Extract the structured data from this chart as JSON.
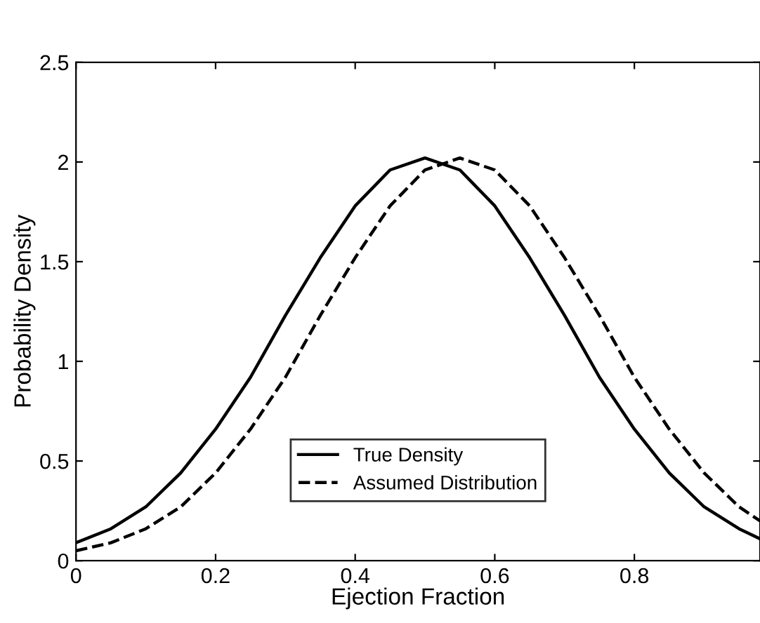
{
  "chart_data": {
    "type": "line",
    "xlabel": "Ejection Fraction",
    "ylabel": "Probability Density",
    "x": [
      0,
      0.05,
      0.1,
      0.15,
      0.2,
      0.25,
      0.3,
      0.35,
      0.4,
      0.45,
      0.5,
      0.55,
      0.6,
      0.65,
      0.7,
      0.75,
      0.8,
      0.85,
      0.9,
      0.95,
      0.98
    ],
    "series": [
      {
        "name": "True Density",
        "color": "#000000",
        "line_style": "solid",
        "values": [
          0.09,
          0.16,
          0.27,
          0.44,
          0.66,
          0.92,
          1.23,
          1.52,
          1.78,
          1.96,
          2.02,
          1.96,
          1.78,
          1.52,
          1.23,
          0.92,
          0.66,
          0.44,
          0.27,
          0.16,
          0.11
        ]
      },
      {
        "name": "Assumed Distribution",
        "color": "#000000",
        "line_style": "dashed",
        "values": [
          0.05,
          0.09,
          0.16,
          0.27,
          0.44,
          0.66,
          0.92,
          1.23,
          1.52,
          1.78,
          1.96,
          2.02,
          1.96,
          1.78,
          1.52,
          1.23,
          0.92,
          0.66,
          0.44,
          0.27,
          0.2
        ]
      }
    ],
    "xlim": [
      0,
      0.98
    ],
    "ylim": [
      0,
      2.5
    ],
    "xticks": [
      0,
      0.2,
      0.4,
      0.6,
      0.8
    ],
    "yticks": [
      0,
      0.5,
      1,
      1.5,
      2,
      2.5
    ],
    "legend": "bottom",
    "grid": false,
    "marker": "none"
  }
}
